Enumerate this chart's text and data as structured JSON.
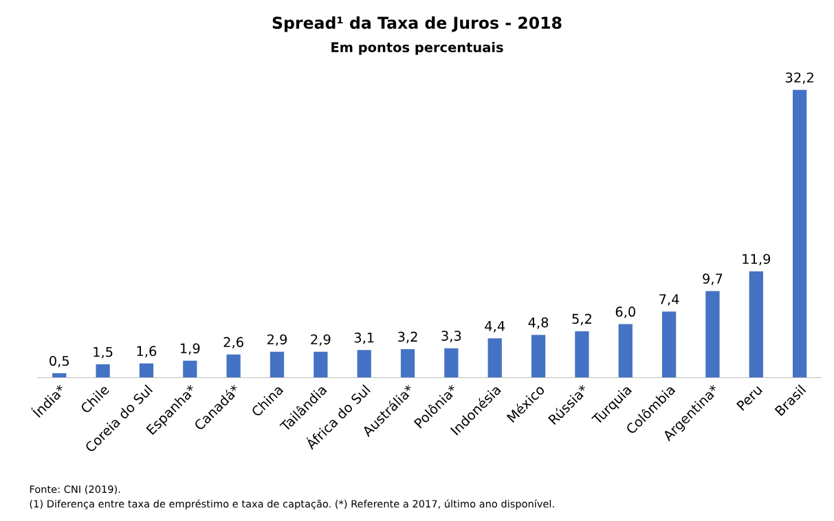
{
  "chart_data": {
    "type": "bar",
    "title": "Spread¹ da Taxa de Juros - 2018",
    "subtitle": "Em pontos percentuais",
    "categories": [
      "Índia*",
      "Chile",
      "Coreia do Sul",
      "Espanha*",
      "Canadá*",
      "China",
      "Tailândia",
      "África do Sul",
      "Austrália*",
      "Polônia*",
      "Indonésia",
      "México",
      "Rússia*",
      "Turquia",
      "Colômbia",
      "Argentina*",
      "Peru",
      "Brasil"
    ],
    "values": [
      0.5,
      1.5,
      1.6,
      1.9,
      2.6,
      2.9,
      2.9,
      3.1,
      3.2,
      3.3,
      4.4,
      4.8,
      5.2,
      6.0,
      7.4,
      9.7,
      11.9,
      32.2
    ],
    "value_labels": [
      "0,5",
      "1,5",
      "1,6",
      "1,9",
      "2,6",
      "2,9",
      "2,9",
      "3,1",
      "3,2",
      "3,3",
      "4,4",
      "4,8",
      "5,2",
      "6,0",
      "7,4",
      "9,7",
      "11,9",
      "32,2"
    ],
    "color": "#4472c4",
    "grid": false,
    "legend": false,
    "tick_labels": "x",
    "annotations": [
      "Fonte: CNI (2019).",
      "(1) Diferença entre taxa de empréstimo e taxa de captação. (*) Referente a 2017, último ano disponível."
    ]
  }
}
